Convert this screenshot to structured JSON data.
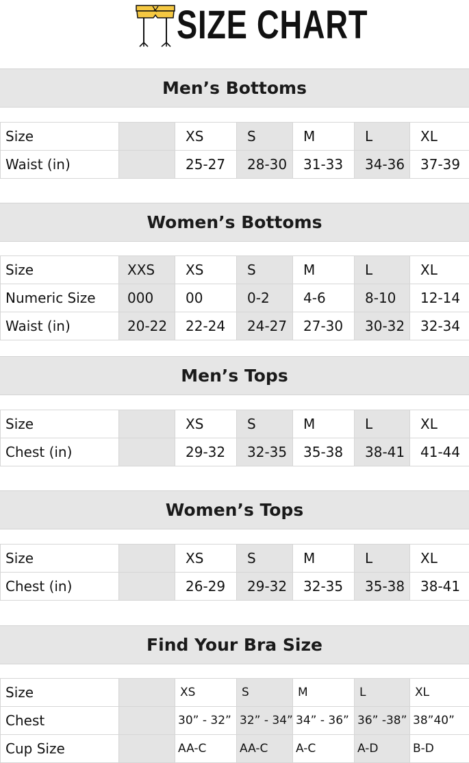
{
  "header": {
    "title": "SIZE CHART",
    "logo_icon": "yellow-shorts-legs-icon"
  },
  "colors": {
    "header_bar": "#e6e6e6",
    "shaded_column": "#e4e4e4",
    "logo_yellow": "#f5c842"
  },
  "sections": [
    {
      "title": "Men’s Bottoms",
      "rows": [
        {
          "label": "Size",
          "cells": [
            "",
            "XS",
            "S",
            "M",
            "L",
            "XL"
          ]
        },
        {
          "label": "Waist (in)",
          "cells": [
            "",
            "25-27",
            "28-30",
            "31-33",
            "34-36",
            "37-39"
          ]
        }
      ]
    },
    {
      "title": "Women’s Bottoms",
      "rows": [
        {
          "label": "Size",
          "cells": [
            "XXS",
            "XS",
            "S",
            "M",
            "L",
            "XL"
          ]
        },
        {
          "label": "Numeric Size",
          "cells": [
            "000",
            "00",
            "0-2",
            "4-6",
            "8-10",
            "12-14"
          ]
        },
        {
          "label": "Waist (in)",
          "cells": [
            "20-22",
            "22-24",
            "24-27",
            "27-30",
            "30-32",
            "32-34"
          ]
        }
      ]
    },
    {
      "title": "Men’s Tops",
      "rows": [
        {
          "label": "Size",
          "cells": [
            "",
            "XS",
            "S",
            "M",
            "L",
            "XL"
          ]
        },
        {
          "label": "Chest (in)",
          "cells": [
            "",
            "29-32",
            "32-35",
            "35-38",
            "38-41",
            "41-44"
          ]
        }
      ]
    },
    {
      "title": "Women’s Tops",
      "rows": [
        {
          "label": "Size",
          "cells": [
            "",
            "XS",
            "S",
            "M",
            "L",
            "XL"
          ]
        },
        {
          "label": "Chest (in)",
          "cells": [
            "",
            "26-29",
            "29-32",
            "32-35",
            "35-38",
            "38-41"
          ]
        }
      ]
    },
    {
      "title": "Find Your Bra Size",
      "small": true,
      "rows": [
        {
          "label": "Size",
          "cells": [
            "",
            "XS",
            "S",
            "M",
            "L",
            "XL"
          ]
        },
        {
          "label": "Chest",
          "cells": [
            "",
            "30” - 32”",
            "32” - 34”",
            "34” - 36”",
            "36” -38”",
            "38”40”"
          ]
        },
        {
          "label": "Cup Size",
          "cells": [
            "",
            "AA-C",
            "AA-C",
            "A-C",
            "A-D",
            "B-D"
          ]
        }
      ]
    }
  ]
}
